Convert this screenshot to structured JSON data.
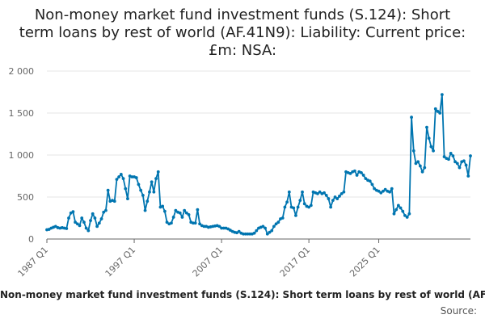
{
  "chart_data": {
    "type": "line",
    "title": "Non-money market fund investment funds (S.124): Short term loans by rest of world (AF.41N9): Liability: Current price: £m: NSA:",
    "series": [
      {
        "name": "Non-money market fund investment funds (S.124): Short term loans by rest of world (AF.41N9): Liability: Current price: £m: NSA:",
        "color": "#0075B0",
        "values": [
          110,
          115,
          130,
          140,
          150,
          135,
          130,
          135,
          130,
          125,
          250,
          310,
          325,
          200,
          180,
          160,
          250,
          200,
          130,
          100,
          220,
          300,
          250,
          150,
          190,
          240,
          320,
          340,
          580,
          450,
          460,
          450,
          710,
          740,
          770,
          720,
          600,
          480,
          750,
          740,
          740,
          730,
          650,
          580,
          520,
          340,
          450,
          560,
          680,
          560,
          720,
          800,
          380,
          390,
          330,
          200,
          180,
          190,
          260,
          340,
          320,
          310,
          260,
          340,
          310,
          290,
          200,
          190,
          190,
          350,
          180,
          160,
          150,
          150,
          140,
          145,
          150,
          155,
          160,
          150,
          130,
          130,
          130,
          120,
          105,
          90,
          80,
          75,
          90,
          70,
          60,
          60,
          60,
          60,
          60,
          70,
          100,
          130,
          140,
          150,
          130,
          60,
          80,
          100,
          150,
          180,
          200,
          240,
          250,
          380,
          440,
          560,
          380,
          370,
          280,
          380,
          460,
          560,
          420,
          390,
          380,
          400,
          560,
          550,
          540,
          560,
          540,
          550,
          520,
          480,
          380,
          460,
          500,
          480,
          510,
          540,
          560,
          800,
          790,
          780,
          800,
          810,
          760,
          800,
          790,
          760,
          720,
          700,
          690,
          650,
          600,
          580,
          570,
          550,
          570,
          590,
          570,
          560,
          600,
          300,
          350,
          400,
          370,
          330,
          280,
          260,
          300,
          1450,
          1050,
          900,
          920,
          870,
          800,
          850,
          1330,
          1200,
          1100,
          1050,
          1550,
          1520,
          1500,
          1720,
          980,
          960,
          950,
          1020,
          990,
          920,
          900,
          850,
          920,
          930,
          880,
          750,
          990
        ]
      }
    ],
    "x_tick_labels": [
      "1987 Q1",
      "1997 Q1",
      "2007 Q1",
      "2017 Q1",
      "2025 Q1"
    ],
    "x_tick_index": [
      0,
      40,
      80,
      120,
      152
    ],
    "y_tick_labels": [
      "0",
      "500",
      "1 000",
      "1 500",
      "2 000"
    ],
    "ylim": [
      0,
      2000
    ],
    "xlabel": "",
    "ylabel": "",
    "grid": true,
    "legend_position": "bottom",
    "source_label": "Source:",
    "colors": {
      "line": "#0075B0",
      "grid": "#e6e6e6",
      "axis": "#666666",
      "text": "#222222"
    }
  }
}
